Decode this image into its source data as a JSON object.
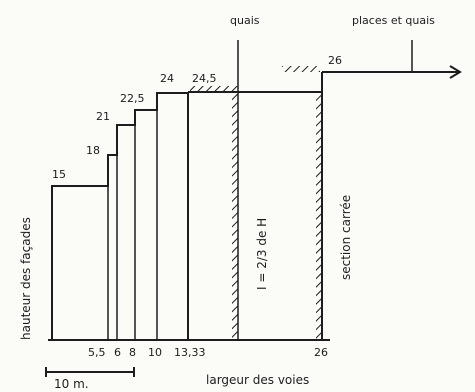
{
  "diagram": {
    "top_labels": {
      "quais": "quais",
      "places": "places et quais"
    },
    "side_label": "hauteur des façades",
    "bottom_label": "largeur des voies",
    "scale_label": "10 m.",
    "rule_label": "I = 2/3 de H",
    "section_label": "section carrée",
    "height_labels": [
      "15",
      "18",
      "21",
      "22,5",
      "24",
      "24,5",
      "26"
    ],
    "width_ticks": [
      "5,5",
      "6",
      "8",
      "10",
      "13,33",
      "26"
    ],
    "steps": [
      {
        "width_m": 5.5,
        "height_m": 15
      },
      {
        "width_m": 6,
        "height_m": 18
      },
      {
        "width_m": 8,
        "height_m": 21
      },
      {
        "width_m": 10,
        "height_m": 22.5
      },
      {
        "width_m": 13.33,
        "height_m": 24
      },
      {
        "width_m": 18.5,
        "height_m": 24.5
      },
      {
        "width_m": 26,
        "height_m": 26
      }
    ]
  }
}
